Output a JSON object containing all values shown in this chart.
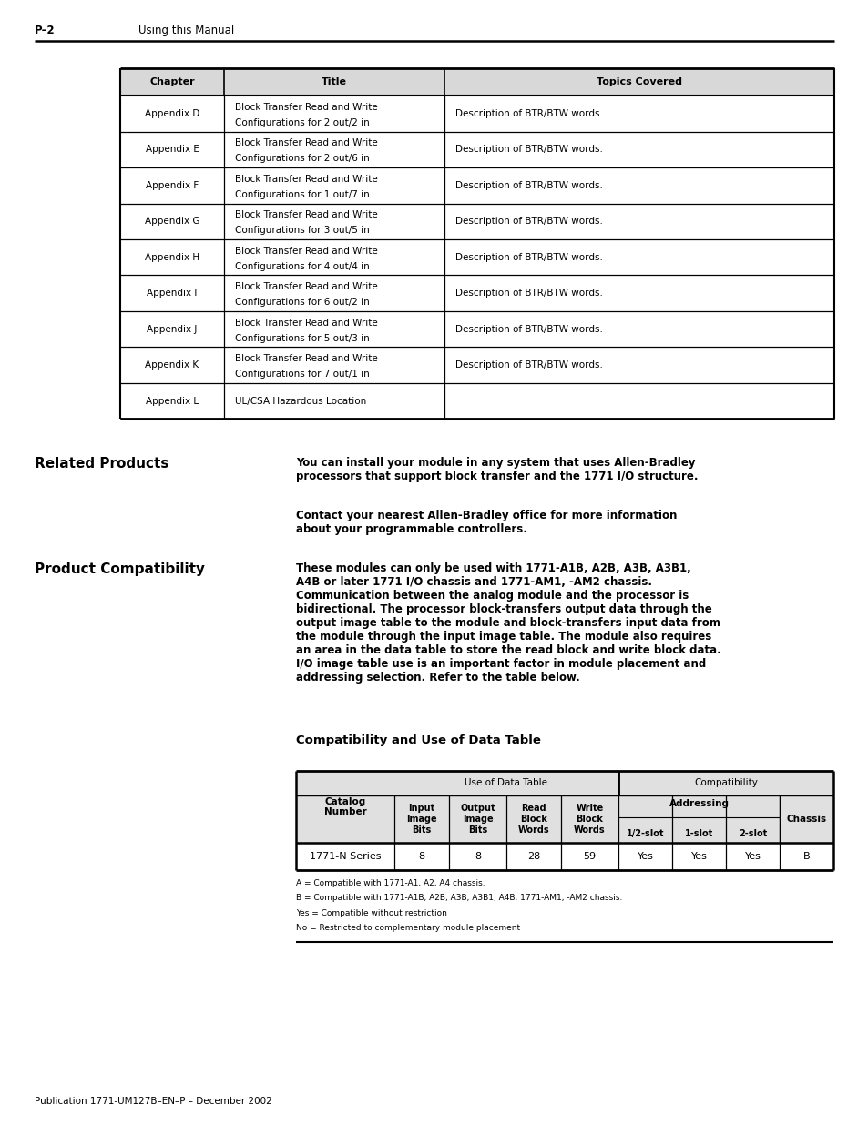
{
  "page_header_left": "P–2",
  "page_header_right": "Using this Manual",
  "top_table": {
    "headers": [
      "Chapter",
      "Title",
      "Topics Covered"
    ],
    "rows": [
      [
        "Appendix D",
        "Block Transfer Read and Write\nConfigurations for 2 out/2 in",
        "Description of BTR/BTW words."
      ],
      [
        "Appendix E",
        "Block Transfer Read and Write\nConfigurations for 2 out/6 in",
        "Description of BTR/BTW words."
      ],
      [
        "Appendix F",
        "Block Transfer Read and Write\nConfigurations for 1 out/7 in",
        "Description of BTR/BTW words."
      ],
      [
        "Appendix G",
        "Block Transfer Read and Write\nConfigurations for 3 out/5 in",
        "Description of BTR/BTW words."
      ],
      [
        "Appendix H",
        "Block Transfer Read and Write\nConfigurations for 4 out/4 in",
        "Description of BTR/BTW words."
      ],
      [
        "Appendix I",
        "Block Transfer Read and Write\nConfigurations for 6 out/2 in",
        "Description of BTR/BTW words."
      ],
      [
        "Appendix J",
        "Block Transfer Read and Write\nConfigurations for 5 out/3 in",
        "Description of BTR/BTW words."
      ],
      [
        "Appendix K",
        "Block Transfer Read and Write\nConfigurations for 7 out/1 in",
        "Description of BTR/BTW words."
      ],
      [
        "Appendix L",
        "UL/CSA Hazardous Location",
        ""
      ]
    ]
  },
  "related_products_heading": "Related Products",
  "related_products_text1": "You can install your module in any system that uses Allen-Bradley\nprocessors that support block transfer and the 1771 I/O structure.",
  "related_products_text2": "Contact your nearest Allen-Bradley office for more information\nabout your programmable controllers.",
  "product_compatibility_heading": "Product Compatibility",
  "product_compatibility_text": "These modules can only be used with 1771-A1B, A2B, A3B, A3B1,\nA4B or later 1771 I/O chassis and 1771-AM1, -AM2 chassis.\nCommunication between the analog module and the processor is\nbidirectional. The processor block-transfers output data through the\noutput image table to the module and block-transfers input data from\nthe module through the input image table. The module also requires\nan area in the data table to store the read block and write block data.\nI/O image table use is an important factor in module placement and\naddressing selection. Refer to the table below.",
  "compat_table_title": "Compatibility and Use of Data Table",
  "data_row": [
    "1771-N Series",
    "8",
    "8",
    "28",
    "59",
    "Yes",
    "Yes",
    "Yes",
    "B"
  ],
  "footnotes": [
    "A = Compatible with 1771-A1, A2, A4 chassis.",
    "B = Compatible with 1771-A1B, A2B, A3B, A3B1, A4B, 1771-AM1, -AM2 chassis.",
    "Yes = Compatible without restriction",
    "No = Restricted to complementary module placement"
  ],
  "footer": "Publication 1771-UM127B–EN–P – December 2002"
}
